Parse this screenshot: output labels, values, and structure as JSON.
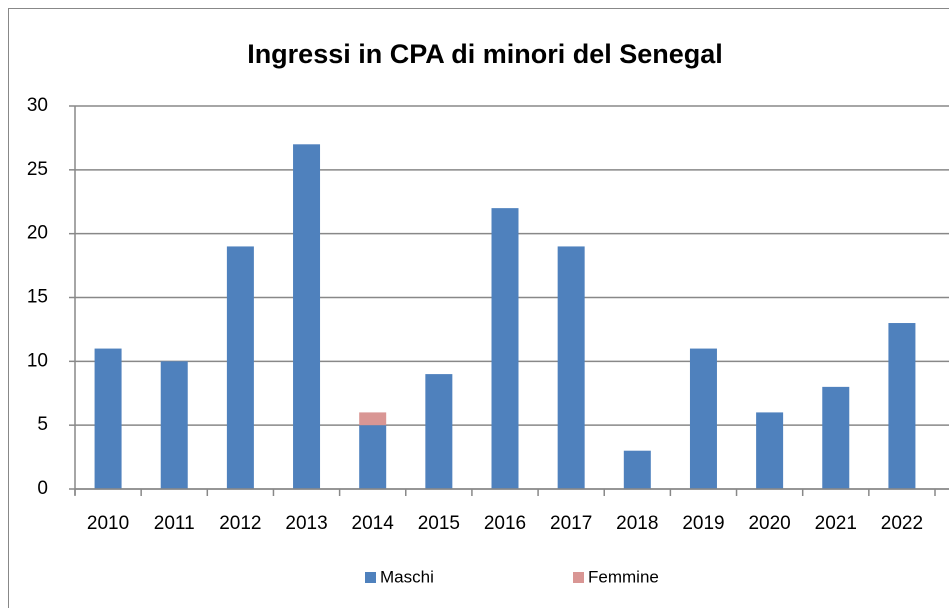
{
  "chart_data": {
    "type": "stacked_bar",
    "title": "Ingressi in CPA di minori del Senegal",
    "categories": [
      "2010",
      "2011",
      "2012",
      "2013",
      "2014",
      "2015",
      "2016",
      "2017",
      "2018",
      "2019",
      "2020",
      "2021",
      "2022"
    ],
    "series": [
      {
        "name": "Maschi",
        "color": "#4f81bd",
        "values": [
          11,
          10,
          19,
          27,
          5,
          9,
          22,
          19,
          3,
          11,
          6,
          8,
          13
        ]
      },
      {
        "name": "Femmine",
        "color": "#d99694",
        "values": [
          0,
          0,
          0,
          0,
          1,
          0,
          0,
          0,
          0,
          0,
          0,
          0,
          0
        ]
      }
    ],
    "ylim": [
      0,
      30
    ],
    "yticks": [
      0,
      5,
      10,
      15,
      20,
      25,
      30
    ],
    "grid": true,
    "legend": "bottom"
  }
}
